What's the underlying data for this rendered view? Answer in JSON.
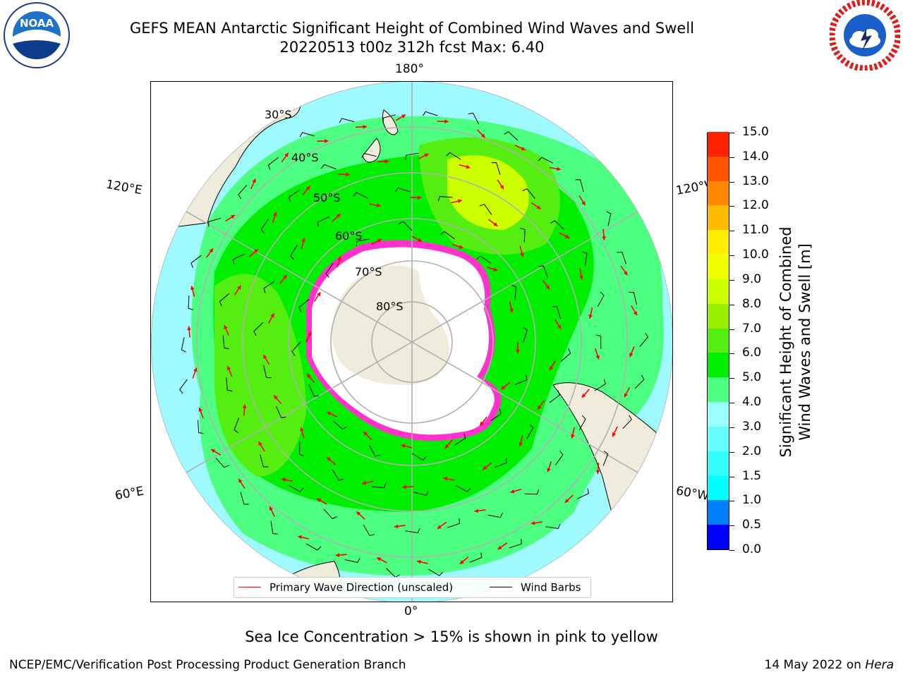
{
  "title": {
    "line1": "GEFS MEAN Antarctic Significant Height of Combined Wind Waves and Swell",
    "line2": "20220513 t00z 312h fcst   Max: 6.40"
  },
  "logos": {
    "left": {
      "name": "noaa-logo",
      "text": "NOAA",
      "ring_text": "NATIONAL OCEANIC AND ATMOSPHERIC ADMINISTRATION · U.S. DEPARTMENT OF COMMERCE"
    },
    "right": {
      "name": "nws-logo",
      "ring_text": "NATIONAL WEATHER SERVICE"
    }
  },
  "map": {
    "projection": "south-polar-stereographic",
    "longitude_labels": {
      "top": "180°",
      "bottom": "0°",
      "upper_left": "120°E",
      "upper_right": "120°W",
      "lower_left": "60°E",
      "lower_right": "60°W"
    },
    "latitude_labels": [
      "30°S",
      "40°S",
      "50°S",
      "60°S",
      "70°S",
      "80°S"
    ],
    "colors": {
      "land": "#efecdc",
      "ocean_edge": "#ffffff",
      "grid": "#b0b0b0",
      "arrow": "#ff0000",
      "barb": "#000000",
      "ice_edge": "#ff33cc"
    }
  },
  "legend": {
    "items": [
      {
        "label": "Primary Wave Direction (unscaled)",
        "color": "#ff0000"
      },
      {
        "label": "Wind Barbs",
        "color": "#000000"
      }
    ]
  },
  "colorbar": {
    "title_line1": "Significant Height of Combined",
    "title_line2": "Wind Waves and Swell [m]",
    "ticks": [
      "0.0",
      "0.5",
      "1.0",
      "1.5",
      "2.0",
      "3.0",
      "4.0",
      "5.0",
      "6.0",
      "7.0",
      "8.0",
      "9.0",
      "10.0",
      "11.0",
      "12.0",
      "13.0",
      "14.0",
      "15.0"
    ],
    "colors": [
      "#0000ff",
      "#0080ff",
      "#00ffff",
      "#33ffff",
      "#66ffff",
      "#99ffff",
      "#4dff80",
      "#00ee00",
      "#55ee11",
      "#99ee00",
      "#ccff00",
      "#eeff00",
      "#ffee00",
      "#ffbb00",
      "#ff8800",
      "#ff5500",
      "#ff2200"
    ]
  },
  "subnote": "Sea Ice Concentration > 15% is shown in pink to yellow",
  "footer": {
    "left": "NCEP/EMC/Verification Post Processing Product Generation Branch",
    "date": "14 May 2022 on ",
    "host": "Hera"
  }
}
